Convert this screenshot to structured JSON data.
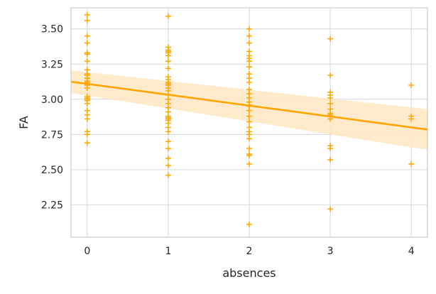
{
  "chart_data": {
    "type": "scatter",
    "title": "",
    "xlabel": "absences",
    "ylabel": "FA",
    "xlim": [
      -0.2,
      4.2
    ],
    "ylim": [
      2.02,
      3.65
    ],
    "x_ticks": [
      0,
      1,
      2,
      3,
      4
    ],
    "x_tick_labels": [
      "0",
      "1",
      "2",
      "3",
      "4"
    ],
    "y_ticks": [
      2.25,
      2.5,
      2.75,
      3.0,
      3.25,
      3.5
    ],
    "y_tick_labels": [
      "2.25",
      "2.50",
      "2.75",
      "3.00",
      "3.25",
      "3.50"
    ],
    "grid": true,
    "marker": "+",
    "color": "#FFA500",
    "band_color": "#FFE8C2",
    "frame_color": "#CCCCCC",
    "series": [
      {
        "x": [
          0,
          0,
          0,
          0,
          0,
          0,
          0,
          0,
          0,
          0,
          0,
          0,
          0,
          0,
          0,
          0,
          0,
          0,
          0,
          0,
          0,
          0,
          0,
          0,
          0,
          0,
          0,
          0,
          1,
          1,
          1,
          1,
          1,
          1,
          1,
          1,
          1,
          1,
          1,
          1,
          1,
          1,
          1,
          1,
          1,
          1,
          1,
          1,
          1,
          1,
          1,
          1,
          1,
          1,
          1,
          1,
          1,
          1,
          1,
          1,
          2,
          2,
          2,
          2,
          2,
          2,
          2,
          2,
          2,
          2,
          2,
          2,
          2,
          2,
          2,
          2,
          2,
          2,
          2,
          2,
          2,
          2,
          2,
          2,
          2,
          2,
          2,
          2,
          2,
          3,
          3,
          3,
          3,
          3,
          3,
          3,
          3,
          3,
          3,
          3,
          3,
          3,
          3,
          4,
          4,
          4,
          4
        ],
        "y": [
          3.6,
          3.56,
          3.45,
          3.4,
          3.33,
          3.32,
          3.27,
          3.21,
          3.18,
          3.17,
          3.15,
          3.13,
          3.12,
          3.1,
          3.08,
          3.02,
          3.01,
          3.0,
          2.99,
          2.97,
          2.92,
          2.89,
          2.86,
          2.77,
          2.75,
          2.69,
          3.0,
          3.15,
          3.59,
          3.37,
          3.35,
          3.33,
          3.31,
          3.27,
          3.22,
          3.16,
          3.14,
          3.12,
          3.11,
          3.08,
          3.06,
          3.03,
          3.0,
          2.97,
          2.94,
          2.91,
          2.88,
          2.86,
          2.85,
          2.83,
          2.8,
          2.77,
          2.7,
          2.65,
          2.58,
          2.53,
          2.46,
          3.1,
          3.34,
          2.87,
          3.5,
          3.45,
          3.4,
          3.34,
          3.31,
          3.27,
          3.23,
          3.18,
          3.12,
          3.07,
          3.04,
          3.01,
          2.98,
          2.95,
          2.92,
          2.88,
          2.84,
          2.8,
          2.77,
          2.75,
          2.72,
          2.65,
          2.61,
          2.6,
          2.54,
          2.11,
          3.15,
          2.96,
          3.29,
          3.43,
          3.17,
          3.05,
          3.03,
          3.01,
          2.97,
          2.93,
          2.89,
          2.86,
          2.67,
          2.65,
          2.57,
          2.22,
          2.9,
          3.1,
          2.88,
          2.86,
          2.54
        ]
      }
    ],
    "regression": {
      "x": [
        -0.2,
        4.2
      ],
      "y": [
        3.125,
        2.785
      ],
      "band_lower": [
        3.045,
        2.64
      ],
      "band_upper": [
        3.205,
        2.93
      ]
    }
  }
}
